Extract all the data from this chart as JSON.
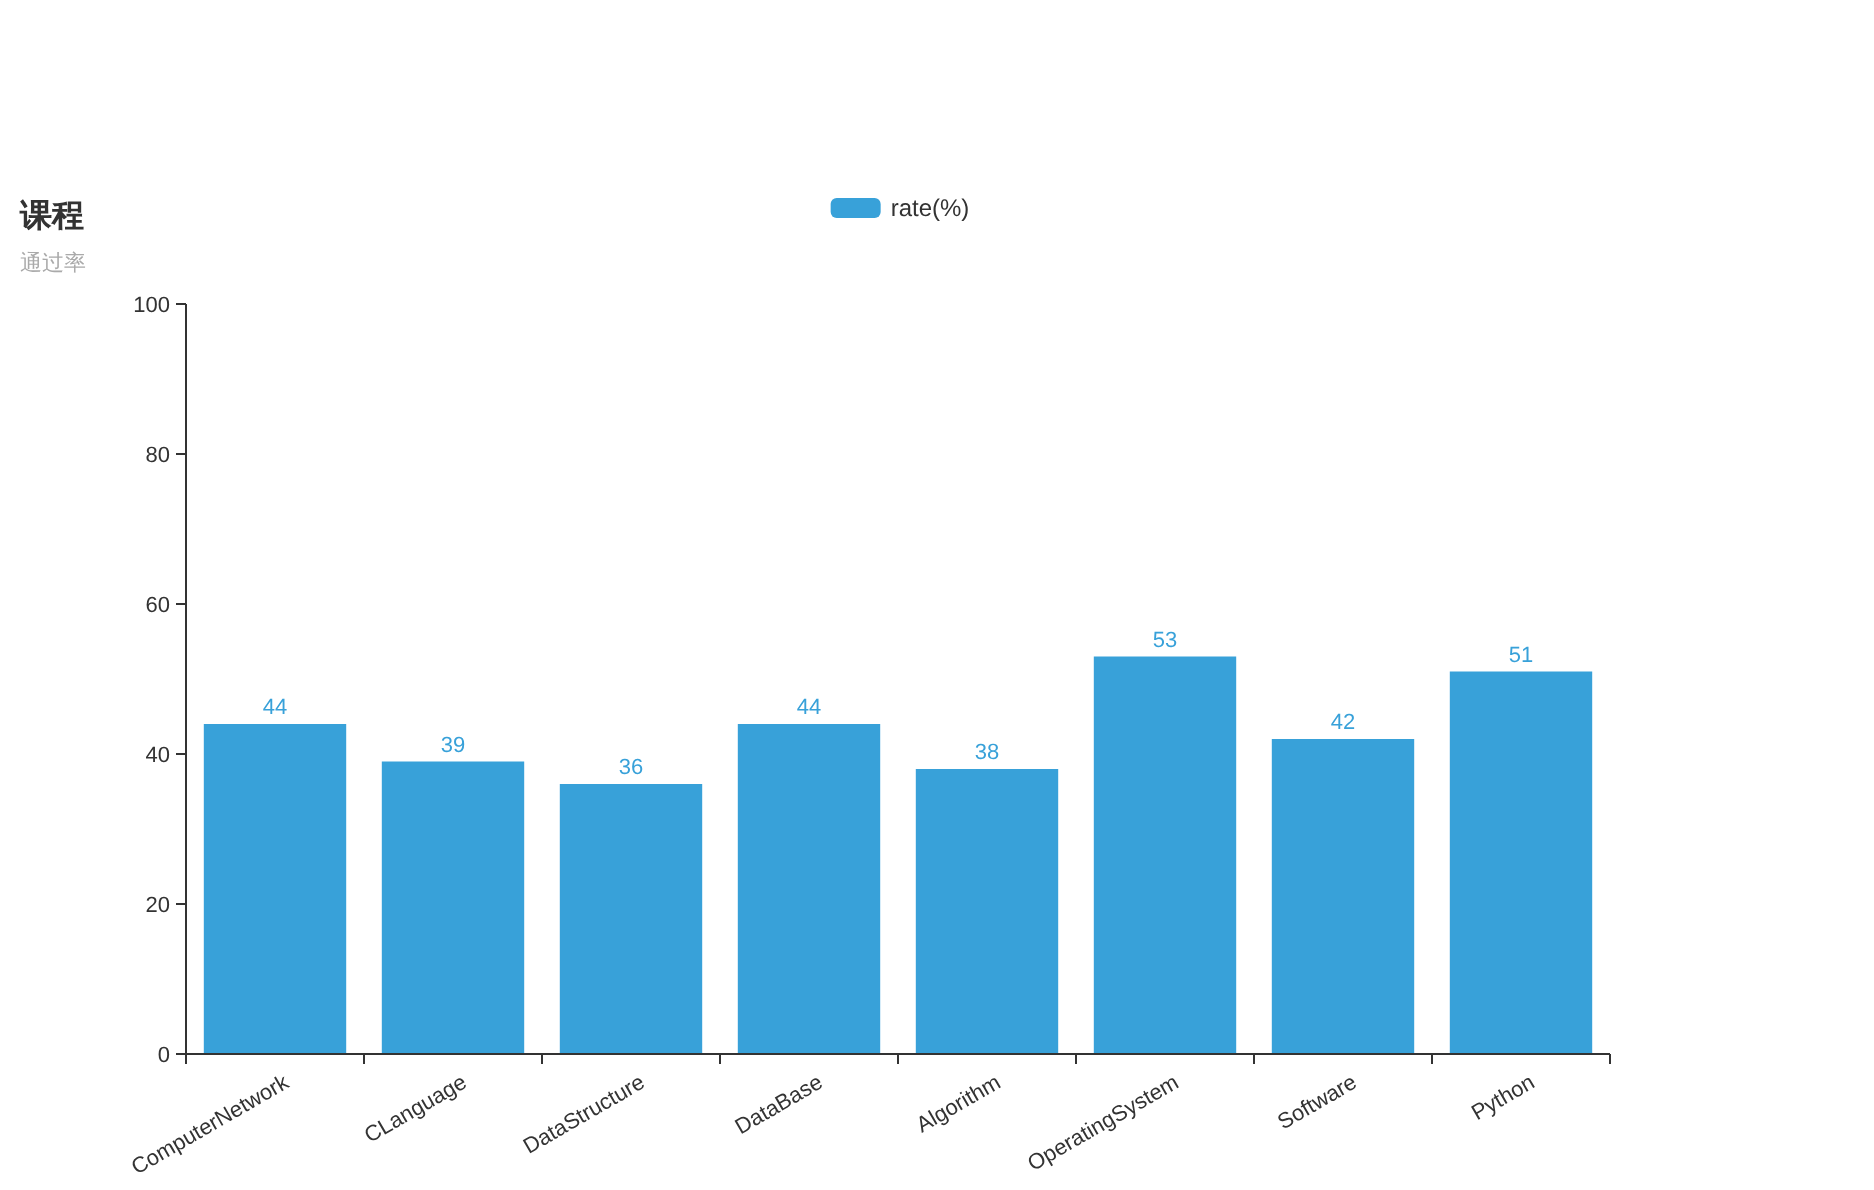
{
  "chart_data": {
    "type": "bar",
    "title": "课程",
    "subtitle": "通过率",
    "categories": [
      "ComputerNetwork",
      "CLanguage",
      "DataStructure",
      "DataBase",
      "Algorithm",
      "OperatingSystem",
      "Software",
      "Python"
    ],
    "series": [
      {
        "name": "rate(%)",
        "color": "#38a1d9",
        "values": [
          44,
          39,
          36,
          44,
          38,
          53,
          42,
          51
        ]
      }
    ],
    "ylim": [
      0,
      100
    ],
    "yticks": [
      0,
      20,
      40,
      60,
      80,
      100
    ],
    "data_labels": true,
    "legend": "top"
  }
}
